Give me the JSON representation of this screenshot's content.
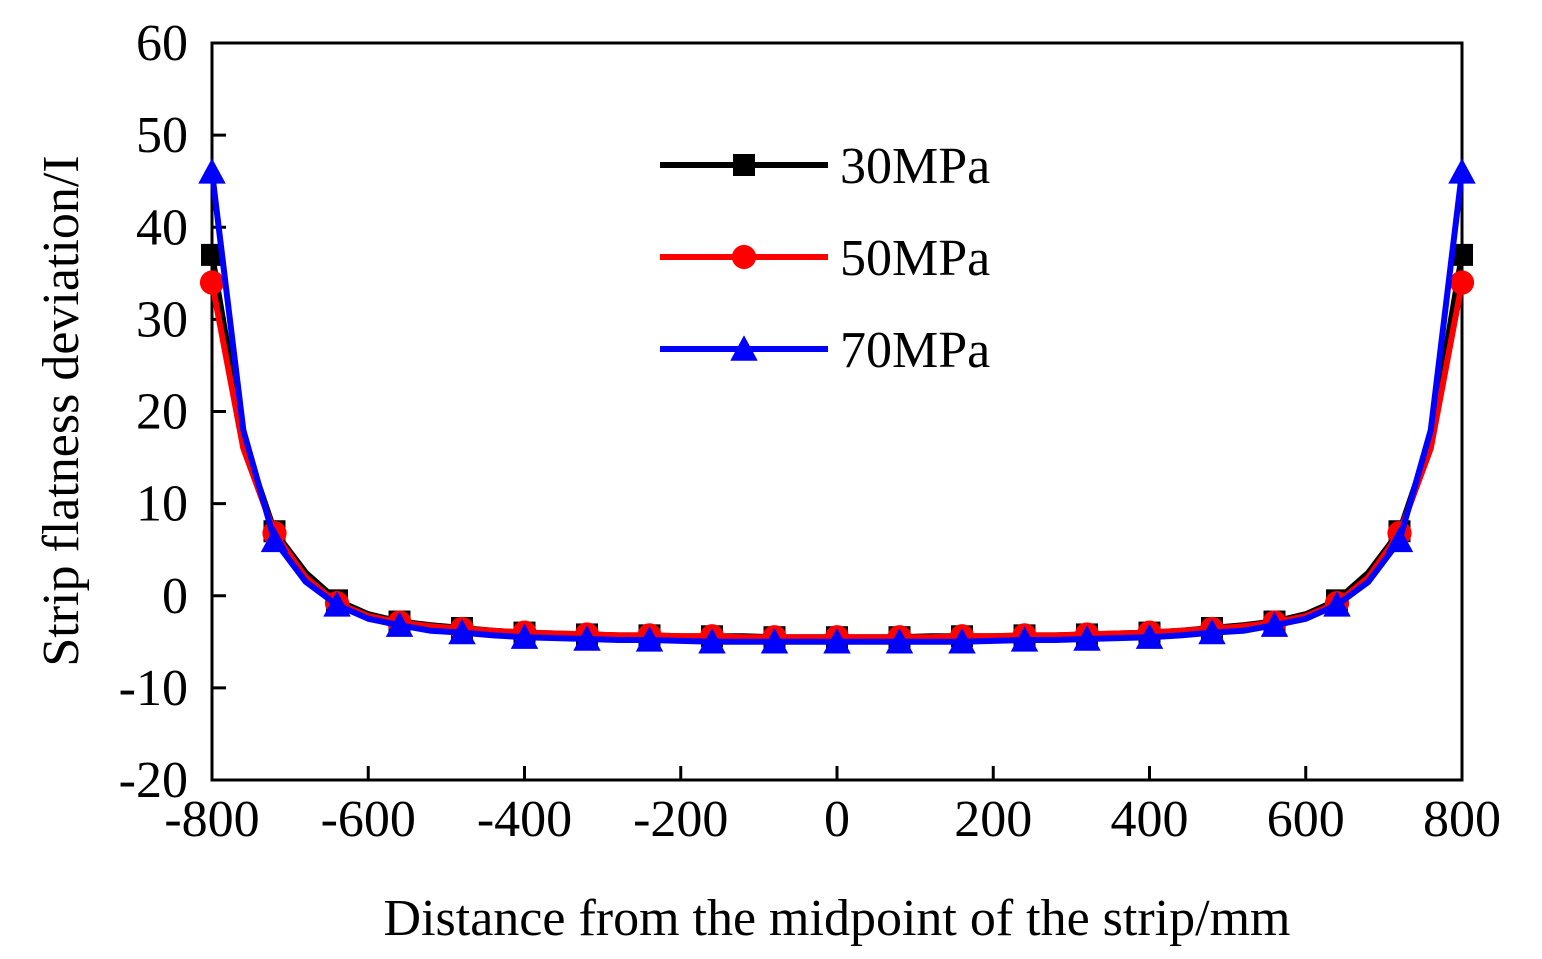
{
  "chart_data": {
    "type": "line",
    "title": "",
    "xlabel": "Distance from the midpoint of the strip/mm",
    "ylabel": "Strip flatness deviation/I",
    "xlim": [
      -800,
      800
    ],
    "ylim": [
      -20,
      60
    ],
    "xticks": [
      -800,
      -600,
      -400,
      -200,
      0,
      200,
      400,
      600,
      800
    ],
    "yticks": [
      -20,
      -10,
      0,
      10,
      20,
      30,
      40,
      50,
      60
    ],
    "xtick_labels": [
      "-800",
      "-600",
      "-400",
      "-200",
      "0",
      "200",
      "400",
      "600",
      "800"
    ],
    "ytick_labels": [
      "-20",
      "-10",
      "0",
      "10",
      "20",
      "30",
      "40",
      "50",
      "60"
    ],
    "grid": false,
    "legend_position": "top-center",
    "x": [
      -800,
      -760,
      -720,
      -680,
      -640,
      -600,
      -560,
      -520,
      -480,
      -440,
      -400,
      -360,
      -320,
      -280,
      -240,
      -200,
      -160,
      -120,
      -80,
      -40,
      0,
      40,
      80,
      120,
      160,
      200,
      240,
      280,
      320,
      360,
      400,
      440,
      480,
      520,
      560,
      600,
      640,
      680,
      720,
      760,
      800
    ],
    "marker_x": [
      -800,
      -720,
      -640,
      -560,
      -480,
      -400,
      -320,
      -240,
      -160,
      -80,
      0,
      80,
      160,
      240,
      320,
      400,
      480,
      560,
      640,
      720,
      800
    ],
    "series": [
      {
        "name": "30MPa",
        "color": "#000000",
        "marker": "square",
        "values": [
          37,
          17,
          7,
          2.5,
          -0.5,
          -2,
          -2.8,
          -3.2,
          -3.5,
          -3.8,
          -4.0,
          -4.1,
          -4.2,
          -4.3,
          -4.3,
          -4.4,
          -4.4,
          -4.4,
          -4.5,
          -4.5,
          -4.5,
          -4.5,
          -4.5,
          -4.4,
          -4.4,
          -4.4,
          -4.3,
          -4.3,
          -4.2,
          -4.1,
          -4.0,
          -3.8,
          -3.5,
          -3.2,
          -2.8,
          -2,
          -0.5,
          2.5,
          7,
          17,
          37
        ]
      },
      {
        "name": "50MPa",
        "color": "#ff0000",
        "marker": "circle",
        "values": [
          34,
          16,
          6.8,
          2,
          -0.8,
          -2.2,
          -2.9,
          -3.3,
          -3.6,
          -3.8,
          -4.0,
          -4.1,
          -4.2,
          -4.3,
          -4.3,
          -4.4,
          -4.4,
          -4.5,
          -4.5,
          -4.5,
          -4.5,
          -4.5,
          -4.5,
          -4.5,
          -4.4,
          -4.4,
          -4.3,
          -4.3,
          -4.2,
          -4.1,
          -4.0,
          -3.8,
          -3.6,
          -3.3,
          -2.9,
          -2.2,
          -0.8,
          2,
          6.8,
          16,
          34
        ]
      },
      {
        "name": "70MPa",
        "color": "#0000ff",
        "marker": "triangle",
        "values": [
          46,
          18,
          6,
          1.5,
          -1,
          -2.5,
          -3.2,
          -3.8,
          -4.0,
          -4.3,
          -4.5,
          -4.6,
          -4.7,
          -4.8,
          -4.8,
          -4.9,
          -5.0,
          -5.0,
          -5.0,
          -5.0,
          -5.0,
          -5.0,
          -5.0,
          -5.0,
          -5.0,
          -4.9,
          -4.8,
          -4.8,
          -4.7,
          -4.6,
          -4.5,
          -4.3,
          -4.0,
          -3.8,
          -3.2,
          -2.5,
          -1,
          1.5,
          6,
          18,
          46
        ]
      }
    ]
  }
}
